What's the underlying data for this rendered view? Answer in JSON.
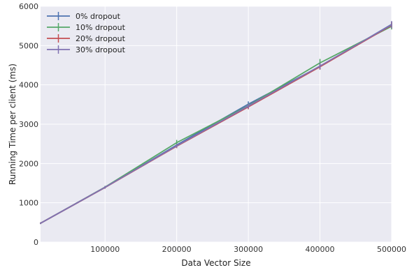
{
  "chart_data": {
    "type": "line",
    "title": "",
    "xlabel": "Data Vector Size",
    "ylabel": "Running Time per client (ms)",
    "xlim": [
      10000,
      500000
    ],
    "ylim": [
      0,
      6000
    ],
    "x_ticks": [
      100000,
      200000,
      300000,
      400000,
      500000
    ],
    "x_tick_labels": [
      "100000",
      "200000",
      "300000",
      "400000",
      "500000"
    ],
    "y_ticks": [
      0,
      1000,
      2000,
      3000,
      4000,
      5000,
      6000
    ],
    "y_tick_labels": [
      "0",
      "1000",
      "2000",
      "3000",
      "4000",
      "5000",
      "6000"
    ],
    "grid": true,
    "legend_position": "top-left",
    "x": [
      10000,
      100000,
      200000,
      300000,
      400000,
      500000
    ],
    "series": [
      {
        "name": "0% dropout",
        "color": "#4c72b0",
        "values": [
          480,
          1390,
          2470,
          3510,
          4470,
          5540
        ],
        "errors": [
          20,
          30,
          50,
          70,
          80,
          80
        ]
      },
      {
        "name": "10% dropout",
        "color": "#55a868",
        "values": [
          480,
          1400,
          2530,
          3470,
          4560,
          5490
        ],
        "errors": [
          20,
          30,
          70,
          60,
          100,
          80
        ]
      },
      {
        "name": "20% dropout",
        "color": "#c44e52",
        "values": [
          480,
          1390,
          2440,
          3440,
          4460,
          5520
        ],
        "errors": [
          20,
          30,
          50,
          60,
          70,
          80
        ]
      },
      {
        "name": "30% dropout",
        "color": "#8172b2",
        "values": [
          480,
          1395,
          2450,
          3460,
          4480,
          5530
        ],
        "errors": [
          20,
          30,
          50,
          60,
          80,
          90
        ]
      }
    ]
  }
}
